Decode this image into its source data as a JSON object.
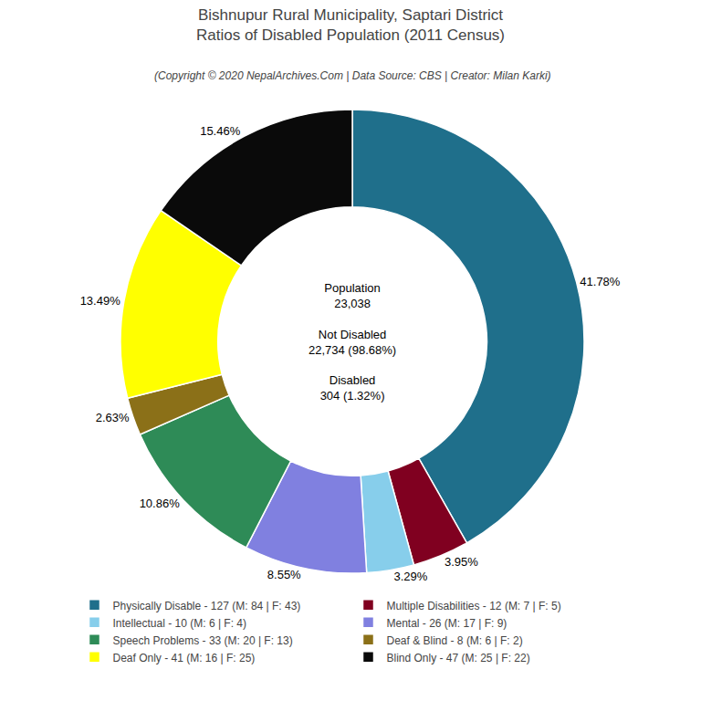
{
  "chart_data": {
    "type": "pie",
    "title": "Bishnupur Rural Municipality, Saptari District\nRatios of Disabled Population (2011 Census)",
    "subtitle": "(Copyright © 2020 NepalArchives.Com | Data Source: CBS | Creator: Milan Karki)",
    "categories": [
      "Physically Disable - 127 (M: 84 | F: 43)",
      "Multiple Disabilities - 12 (M: 7 | F: 5)",
      "Intellectual - 10 (M: 6 | F: 4)",
      "Mental - 26 (M: 17 | F: 9)",
      "Speech Problems - 33 (M: 20 | F: 13)",
      "Deaf & Blind - 8 (M: 6 | F: 2)",
      "Deaf Only - 41 (M: 16 | F: 25)",
      "Blind Only - 47 (M: 25 | F: 22)"
    ],
    "values": [
      41.78,
      3.95,
      3.29,
      8.55,
      10.86,
      2.63,
      13.49,
      15.46
    ],
    "value_labels": [
      "41.78%",
      "3.95%",
      "3.29%",
      "8.55%",
      "10.86%",
      "2.63%",
      "13.49%",
      "15.46%"
    ],
    "colors": [
      "#1f6f8b",
      "#800020",
      "#87ceeb",
      "#8080e0",
      "#2e8b57",
      "#8b7018",
      "#ffff00",
      "#0a0a0a"
    ],
    "data_labels": true,
    "legend": "bottom",
    "annotations": [
      "Population\n23,038\n\nNot Disabled\n22,734 (98.68%)\n\nDisabled\n304 (1.32%)"
    ]
  }
}
